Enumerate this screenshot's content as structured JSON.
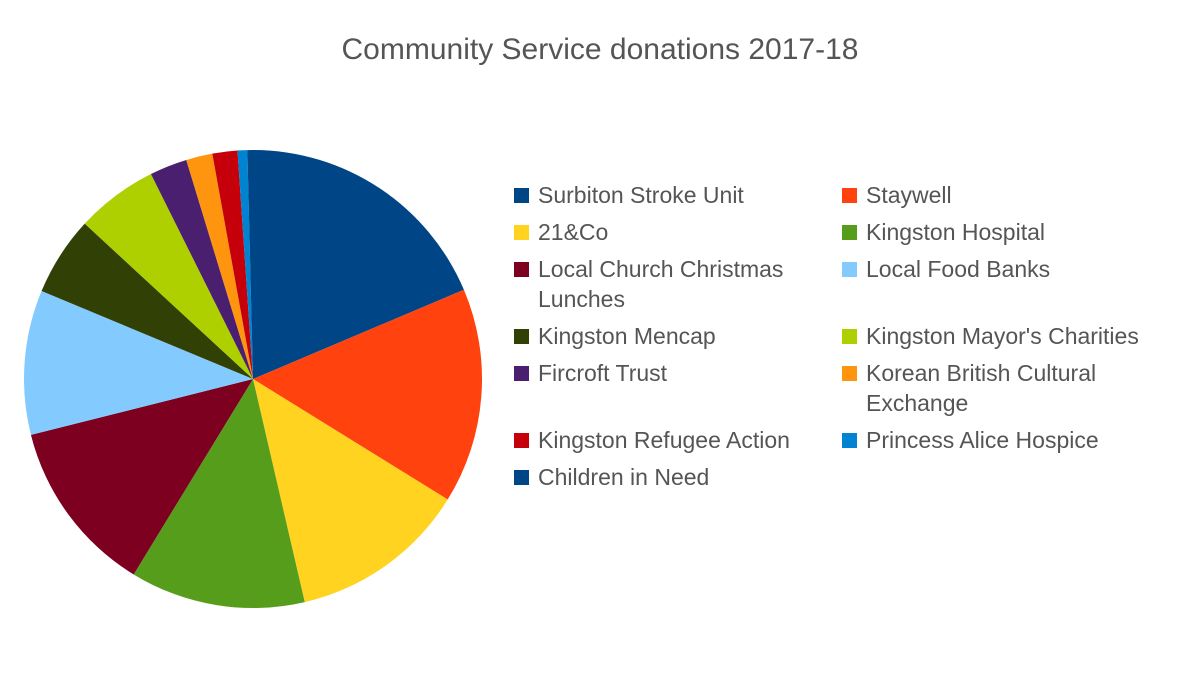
{
  "chart_data": {
    "type": "pie",
    "title": "Community Service donations 2017-18",
    "legend_position": "right",
    "unit": "",
    "slices": [
      {
        "label": "Surbiton Stroke Unit",
        "value": 19.0,
        "color": "#004586"
      },
      {
        "label": "Staywell",
        "value": 15.5,
        "color": "#ff420e"
      },
      {
        "label": "21&Co",
        "value": 12.8,
        "color": "#ffd320"
      },
      {
        "label": "Kingston Hospital",
        "value": 12.6,
        "color": "#579d1c"
      },
      {
        "label": "Local Church Christmas Lunches",
        "value": 12.6,
        "color": "#7e0021"
      },
      {
        "label": "Local Food Banks",
        "value": 10.4,
        "color": "#83caff"
      },
      {
        "label": "Kingston Mencap",
        "value": 5.7,
        "color": "#314004"
      },
      {
        "label": "Kingston Mayor's Charities",
        "value": 5.9,
        "color": "#aecf00"
      },
      {
        "label": "Fircroft Trust",
        "value": 2.7,
        "color": "#4b1f6f"
      },
      {
        "label": "Korean British Cultural Exchange",
        "value": 1.9,
        "color": "#ff950e"
      },
      {
        "label": "Kingston Refugee Action",
        "value": 1.8,
        "color": "#c5000b"
      },
      {
        "label": "Princess Alice Hospice",
        "value": 0.7,
        "color": "#0084d1"
      },
      {
        "label": "Children in Need",
        "value": 0.4,
        "color": "#004586"
      }
    ]
  }
}
